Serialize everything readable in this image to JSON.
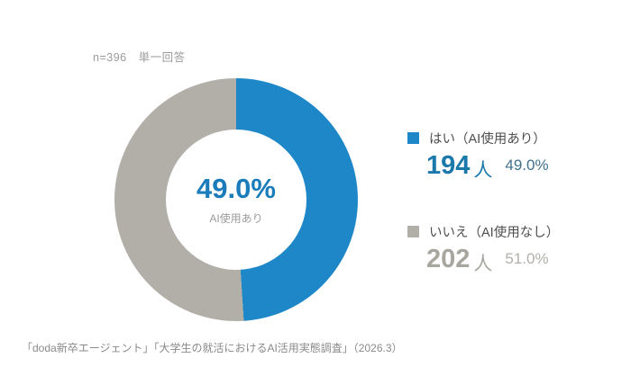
{
  "meta": {
    "sample_note": "n=396　単一回答"
  },
  "chart_data": {
    "type": "pie",
    "subtype": "donut",
    "title": "",
    "categories": [
      "はい（AI使用あり）",
      "いいえ（AI使用なし）"
    ],
    "values": [
      49.0,
      51.0
    ],
    "counts": [
      194,
      202
    ],
    "colors": [
      "#1e87c8",
      "#b2afa9"
    ],
    "start_angle_deg": 0,
    "direction": "clockwise",
    "center_value": "49.0%",
    "center_label": "AI使用あり",
    "legend_position": "right"
  },
  "donut_center": {
    "value": "49.0%",
    "label": "AI使用あり"
  },
  "legend": {
    "items": [
      {
        "label": "はい（AI使用あり）",
        "count": "194",
        "unit": "人",
        "percent": "49.0%",
        "color": "#1e87c8"
      },
      {
        "label": "いいえ（AI使用なし）",
        "count": "202",
        "unit": "人",
        "percent": "51.0%",
        "color": "#b2afa9"
      }
    ]
  },
  "footer": {
    "source": "「doda新卒エージェント」「大学生の就活におけるAI活用実態調査」（2026.3）"
  }
}
